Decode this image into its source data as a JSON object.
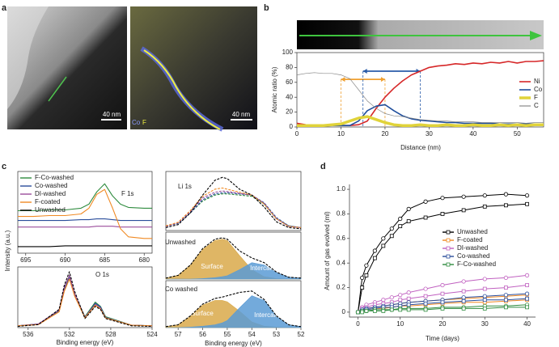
{
  "panel_labels": [
    "a",
    "b",
    "c",
    "d"
  ],
  "panel_a": {
    "scale_bars": [
      "40 nm",
      "40 nm"
    ],
    "map_legend": [
      "Co",
      "F"
    ]
  },
  "chart_data": [
    {
      "type": "line",
      "xlabel": "Distance (nm)",
      "ylabel": "Atomic ratio (%)",
      "x": [
        0,
        2,
        4,
        6,
        8,
        10,
        12,
        14,
        16,
        18,
        20,
        22,
        24,
        26,
        28,
        30,
        32,
        34,
        36,
        38,
        40,
        42,
        44,
        46,
        48,
        50,
        52,
        54,
        56
      ],
      "xlim": [
        0,
        56
      ],
      "xticks": [
        0,
        10,
        20,
        30,
        40,
        50
      ],
      "ylim": [
        0,
        100
      ],
      "yticks": [
        0,
        20,
        40,
        60,
        80,
        100
      ],
      "legend": "right",
      "series": [
        {
          "name": "Ni",
          "color": "#d62728",
          "line_width": 1.6,
          "values": [
            5,
            3,
            2,
            2,
            2,
            2,
            2,
            3,
            8,
            25,
            40,
            52,
            62,
            70,
            75,
            80,
            82,
            83,
            85,
            84,
            86,
            85,
            87,
            86,
            88,
            86,
            88,
            88,
            89
          ]
        },
        {
          "name": "Co",
          "color": "#1f4e9c",
          "line_width": 1.6,
          "values": [
            3,
            2,
            2,
            2,
            2,
            2,
            2,
            8,
            22,
            28,
            30,
            22,
            15,
            11,
            9,
            8,
            7,
            6,
            6,
            5,
            5,
            5,
            5,
            4,
            4,
            4,
            4,
            4,
            4
          ]
        },
        {
          "name": "F",
          "color": "#e0d33a",
          "line_width": 3.5,
          "values": [
            2,
            2,
            2,
            2,
            3,
            4,
            8,
            12,
            14,
            10,
            6,
            3,
            2,
            2,
            3,
            2,
            2,
            3,
            2,
            2,
            3,
            2,
            2,
            3,
            2,
            3,
            2,
            3,
            3
          ]
        },
        {
          "name": "C",
          "color": "#888888",
          "line_width": 0.7,
          "values": [
            70,
            72,
            73,
            72,
            72,
            70,
            65,
            50,
            35,
            25,
            18,
            15,
            14,
            12,
            10,
            9,
            8,
            8,
            7,
            7,
            7,
            6,
            6,
            6,
            6,
            6,
            5,
            6,
            6
          ]
        }
      ],
      "ranges": [
        {
          "x": [
            10,
            20
          ],
          "y": 64,
          "color": "#f0a030"
        },
        {
          "x": [
            15,
            28
          ],
          "y": 75,
          "color": "#2a5caa"
        }
      ]
    },
    {
      "type": "line",
      "annotation": "F 1s",
      "ylabel": "Intensity (a.u.)",
      "x": [
        696,
        694,
        692,
        690,
        688,
        687,
        686,
        685,
        684,
        683,
        682,
        680,
        679
      ],
      "xlim": [
        696,
        679
      ],
      "xticks": [
        695,
        690,
        685,
        680
      ],
      "ylim": [
        0,
        1
      ],
      "legend": "upper left",
      "series": [
        {
          "name": "F-Co-washed",
          "color": "#2e8b3e",
          "values": [
            0.52,
            0.52,
            0.53,
            0.53,
            0.55,
            0.6,
            0.75,
            0.85,
            0.7,
            0.6,
            0.56,
            0.55,
            0.55
          ]
        },
        {
          "name": "Co-washed",
          "color": "#2a4d9b",
          "values": [
            0.4,
            0.4,
            0.4,
            0.4,
            0.41,
            0.41,
            0.42,
            0.42,
            0.41,
            0.4,
            0.4,
            0.4,
            0.4
          ]
        },
        {
          "name": "DI-washed",
          "color": "#9b4d9b",
          "values": [
            0.32,
            0.32,
            0.32,
            0.32,
            0.32,
            0.32,
            0.33,
            0.33,
            0.33,
            0.32,
            0.32,
            0.32,
            0.32
          ]
        },
        {
          "name": "F-coated",
          "color": "#f08a24",
          "values": [
            0.45,
            0.45,
            0.46,
            0.46,
            0.48,
            0.55,
            0.72,
            0.78,
            0.55,
            0.3,
            0.2,
            0.18,
            0.18
          ]
        },
        {
          "name": "Unwashed",
          "color": "#000000",
          "values": [
            0.08,
            0.08,
            0.08,
            0.09,
            0.09,
            0.09,
            0.09,
            0.09,
            0.09,
            0.09,
            0.09,
            0.09,
            0.09
          ]
        }
      ]
    },
    {
      "type": "line",
      "annotation": "O 1s",
      "xlabel": "Binding energy (eV)",
      "x": [
        537,
        535,
        533,
        532.5,
        532,
        531.5,
        530.5,
        529.5,
        529,
        528.5,
        526,
        524
      ],
      "xlim": [
        537,
        524
      ],
      "xticks": [
        536,
        532,
        528,
        524
      ],
      "ylim": [
        0,
        1
      ],
      "series": [
        {
          "color": "#2e8b3e",
          "values": [
            0.03,
            0.06,
            0.28,
            0.65,
            0.85,
            0.55,
            0.18,
            0.42,
            0.35,
            0.18,
            0.04,
            0.03
          ]
        },
        {
          "color": "#2a4d9b",
          "values": [
            0.03,
            0.06,
            0.27,
            0.62,
            0.82,
            0.54,
            0.17,
            0.4,
            0.34,
            0.17,
            0.04,
            0.03
          ]
        },
        {
          "color": "#9b4d9b",
          "values": [
            0.03,
            0.06,
            0.29,
            0.66,
            0.86,
            0.56,
            0.17,
            0.38,
            0.32,
            0.16,
            0.04,
            0.03
          ]
        },
        {
          "color": "#f08a24",
          "values": [
            0.03,
            0.05,
            0.26,
            0.6,
            0.8,
            0.52,
            0.16,
            0.37,
            0.31,
            0.16,
            0.04,
            0.03
          ]
        },
        {
          "color": "#000000",
          "dash": true,
          "values": [
            0.02,
            0.05,
            0.3,
            0.7,
            0.92,
            0.6,
            0.15,
            0.35,
            0.3,
            0.15,
            0.03,
            0.02
          ]
        }
      ]
    },
    {
      "type": "line",
      "annotation": "Li 1s",
      "x": [
        57.5,
        57,
        56.5,
        56,
        55.5,
        55.2,
        55,
        54.5,
        54,
        53.5,
        53,
        52.5,
        52
      ],
      "xlim": [
        57.5,
        52
      ],
      "ylim": [
        0,
        1
      ],
      "series": [
        {
          "color": "#2e8b3e",
          "dash": true,
          "values": [
            0.08,
            0.12,
            0.3,
            0.5,
            0.6,
            0.62,
            0.62,
            0.6,
            0.58,
            0.45,
            0.2,
            0.08,
            0.05
          ]
        },
        {
          "color": "#2a4d9b",
          "dash": true,
          "values": [
            0.07,
            0.12,
            0.3,
            0.52,
            0.62,
            0.64,
            0.64,
            0.62,
            0.6,
            0.47,
            0.22,
            0.08,
            0.05
          ]
        },
        {
          "color": "#9b4d9b",
          "dash": true,
          "values": [
            0.07,
            0.13,
            0.32,
            0.55,
            0.65,
            0.67,
            0.66,
            0.63,
            0.6,
            0.46,
            0.2,
            0.07,
            0.05
          ]
        },
        {
          "color": "#f08a24",
          "dash": true,
          "values": [
            0.08,
            0.14,
            0.34,
            0.58,
            0.7,
            0.72,
            0.7,
            0.65,
            0.6,
            0.45,
            0.2,
            0.07,
            0.05
          ]
        },
        {
          "color": "#000000",
          "dash": true,
          "values": [
            0.05,
            0.1,
            0.3,
            0.6,
            0.85,
            0.9,
            0.88,
            0.7,
            0.6,
            0.4,
            0.15,
            0.05,
            0.03
          ]
        }
      ]
    },
    {
      "type": "area",
      "annotation": "Unwashed",
      "x": [
        57.5,
        57,
        56.5,
        56,
        55.5,
        55.2,
        55,
        54.5,
        54,
        53.5,
        53,
        52.5,
        52
      ],
      "xlim": [
        57.5,
        52
      ],
      "ylim": [
        0,
        1
      ],
      "series": [
        {
          "name": "Surface",
          "color": "#d9a94a",
          "fill": true,
          "values": [
            0.02,
            0.08,
            0.3,
            0.63,
            0.82,
            0.85,
            0.82,
            0.5,
            0.2,
            0.05,
            0.01,
            0,
            0
          ]
        },
        {
          "name": "Intercalated",
          "color": "#5b9bd5",
          "fill": true,
          "values": [
            0,
            0,
            0,
            0.01,
            0.03,
            0.05,
            0.07,
            0.2,
            0.35,
            0.3,
            0.14,
            0.04,
            0.02
          ]
        },
        {
          "color": "#000000",
          "dash": true,
          "values": [
            0.02,
            0.08,
            0.3,
            0.65,
            0.85,
            0.88,
            0.85,
            0.6,
            0.45,
            0.35,
            0.15,
            0.04,
            0.02
          ]
        }
      ]
    },
    {
      "type": "area",
      "annotation": "Co washed",
      "xlabel": "Binding energy (eV)",
      "x": [
        57.5,
        57,
        56.5,
        56,
        55.5,
        55.2,
        55,
        54.5,
        54,
        53.5,
        53,
        52.5,
        52
      ],
      "xlim": [
        57.5,
        52
      ],
      "xticks": [
        57,
        56,
        55,
        54,
        53,
        52
      ],
      "ylim": [
        0,
        1
      ],
      "series": [
        {
          "name": "Surface",
          "color": "#d9a94a",
          "fill": true,
          "values": [
            0.02,
            0.06,
            0.24,
            0.48,
            0.58,
            0.58,
            0.55,
            0.35,
            0.12,
            0.03,
            0.01,
            0,
            0
          ]
        },
        {
          "name": "Intercalated",
          "color": "#5b9bd5",
          "fill": true,
          "values": [
            0,
            0,
            0.01,
            0.03,
            0.06,
            0.1,
            0.15,
            0.42,
            0.68,
            0.58,
            0.24,
            0.06,
            0.02
          ]
        },
        {
          "color": "#000000",
          "dash": true,
          "values": [
            0.02,
            0.06,
            0.25,
            0.5,
            0.62,
            0.65,
            0.68,
            0.75,
            0.78,
            0.6,
            0.25,
            0.06,
            0.02
          ]
        }
      ]
    },
    {
      "type": "line",
      "xlabel": "Time (days)",
      "ylabel": "Amount of gas evolved (ml)",
      "frame": false,
      "x": [
        0,
        1,
        2,
        4,
        6,
        8,
        10,
        12,
        16,
        20,
        25,
        30,
        35,
        40
      ],
      "xlim": [
        -2,
        42
      ],
      "xticks": [
        0,
        10,
        20,
        30,
        40
      ],
      "ylim": [
        -0.04,
        1.04
      ],
      "yticks": [
        0,
        0.2,
        0.4,
        0.6,
        0.8,
        {
          "value": 1,
          "label": "1.0"
        }
      ],
      "legend": "center",
      "markers": [
        "circle",
        "square"
      ],
      "series": [
        {
          "name": "Unwashed",
          "color": "#000000",
          "replicates": [
            [
              0,
              0.28,
              0.38,
              0.5,
              0.6,
              0.68,
              0.76,
              0.84,
              0.9,
              0.93,
              0.94,
              0.95,
              0.96,
              0.95
            ],
            [
              0,
              0.2,
              0.3,
              0.44,
              0.54,
              0.62,
              0.7,
              0.74,
              0.77,
              0.8,
              0.83,
              0.86,
              0.87,
              0.88
            ]
          ]
        },
        {
          "name": "F-coated",
          "color": "#f08a24",
          "replicates": [
            [
              0,
              0.02,
              0.03,
              0.04,
              0.05,
              0.06,
              0.07,
              0.08,
              0.09,
              0.1,
              0.11,
              0.12,
              0.13,
              0.14
            ],
            [
              0,
              0.01,
              0.02,
              0.03,
              0.03,
              0.04,
              0.05,
              0.05,
              0.06,
              0.07,
              0.08,
              0.08,
              0.09,
              0.1
            ]
          ]
        },
        {
          "name": "DI-washed",
          "color": "#c060c0",
          "replicates": [
            [
              0,
              0.04,
              0.06,
              0.08,
              0.1,
              0.12,
              0.14,
              0.16,
              0.19,
              0.22,
              0.25,
              0.27,
              0.28,
              0.3
            ],
            [
              0,
              0.03,
              0.04,
              0.06,
              0.07,
              0.08,
              0.1,
              0.11,
              0.13,
              0.15,
              0.17,
              0.19,
              0.2,
              0.22
            ]
          ]
        },
        {
          "name": "Co-washed",
          "color": "#2a4d9b",
          "replicates": [
            [
              0,
              0.02,
              0.03,
              0.04,
              0.05,
              0.06,
              0.07,
              0.08,
              0.09,
              0.1,
              0.12,
              0.13,
              0.14,
              0.15
            ],
            [
              0,
              0.01,
              0.02,
              0.03,
              0.04,
              0.04,
              0.05,
              0.06,
              0.07,
              0.08,
              0.09,
              0.1,
              0.1,
              0.11
            ]
          ]
        },
        {
          "name": "F-Co-washed",
          "color": "#2e8b3e",
          "replicates": [
            [
              0,
              0.01,
              0.01,
              0.02,
              0.02,
              0.02,
              0.03,
              0.03,
              0.03,
              0.04,
              0.04,
              0.05,
              0.05,
              0.06
            ],
            [
              0,
              0,
              0.01,
              0.01,
              0.01,
              0.02,
              0.02,
              0.02,
              0.02,
              0.03,
              0.03,
              0.03,
              0.04,
              0.04
            ]
          ]
        }
      ]
    }
  ]
}
